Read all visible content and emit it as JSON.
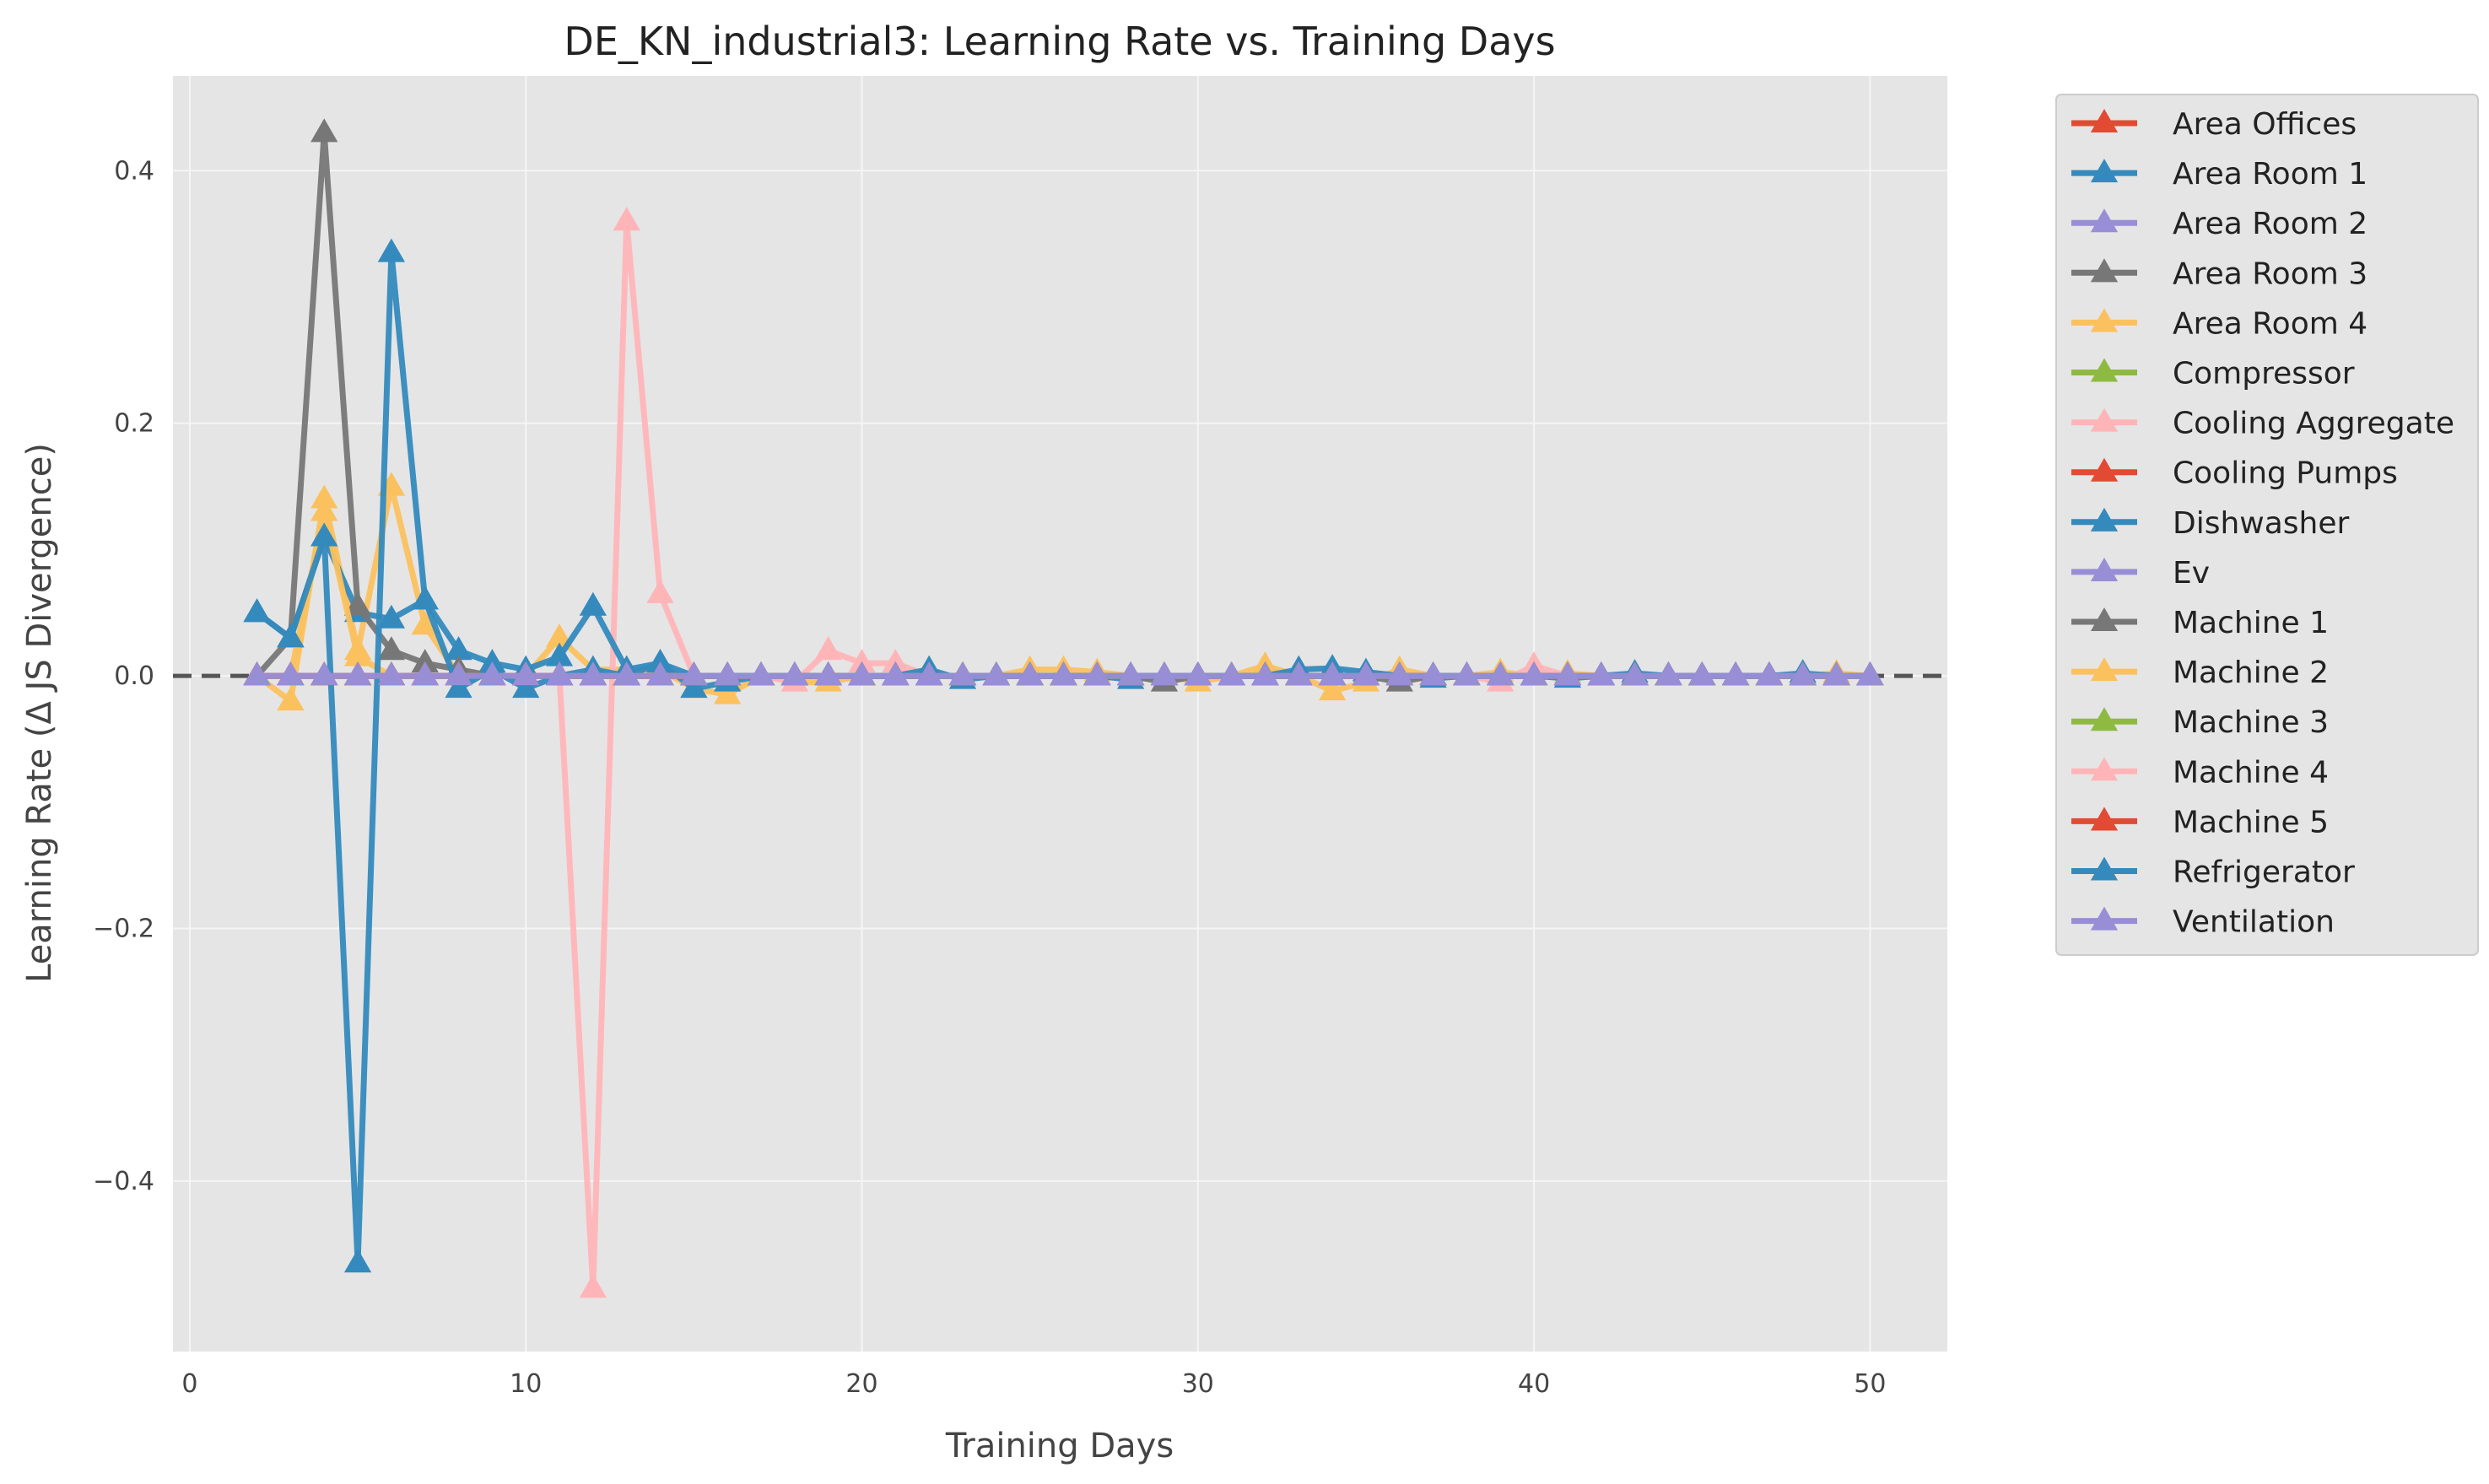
{
  "chart_data": {
    "type": "line",
    "title": "DE_KN_industrial3: Learning Rate vs. Training Days",
    "xlabel": "Training Days",
    "ylabel": "Learning Rate (Δ JS Divergence)",
    "xlim": [
      -0.5,
      52.3
    ],
    "ylim": [
      -0.535,
      0.475
    ],
    "xticks": [
      0,
      10,
      20,
      30,
      40,
      50
    ],
    "yticks": [
      -0.4,
      -0.2,
      0.0,
      0.2,
      0.4
    ],
    "ytick_labels": [
      "−0.4",
      "−0.2",
      "0.0",
      "0.2",
      "0.4"
    ],
    "x": [
      2,
      3,
      4,
      5,
      6,
      7,
      8,
      9,
      10,
      11,
      12,
      13,
      14,
      15,
      16,
      17,
      18,
      19,
      20,
      21,
      22,
      23,
      24,
      25,
      26,
      27,
      28,
      29,
      30,
      31,
      32,
      33,
      34,
      35,
      36,
      37,
      38,
      39,
      40,
      41,
      42,
      43,
      44,
      45,
      46,
      47,
      48,
      49,
      50
    ],
    "legend_position": "outside-right",
    "grid": true,
    "reference_line": {
      "y": 0,
      "style": "dashed",
      "color": "#555555"
    },
    "colors": {
      "background": "#e5e5e5",
      "grid": "#f5f5f5"
    },
    "series": [
      {
        "name": "Area Offices",
        "color": "#E24A33",
        "values": [
          0,
          0,
          0,
          0,
          0,
          0,
          0,
          0,
          0,
          0,
          0,
          0,
          0,
          0,
          0,
          0,
          0,
          0,
          0,
          0,
          0,
          0,
          0,
          0,
          0,
          0,
          0,
          0,
          0,
          0,
          0,
          0,
          0,
          0,
          0,
          0,
          0,
          0,
          0,
          0,
          0,
          0,
          0,
          0,
          0,
          0,
          0,
          0,
          0
        ]
      },
      {
        "name": "Area Room 1",
        "color": "#348ABD",
        "values": [
          0,
          0,
          0,
          0,
          0,
          0,
          0,
          0,
          0,
          0,
          0,
          0,
          0,
          0,
          0,
          0,
          0,
          0,
          0,
          0,
          0,
          0,
          0,
          0,
          0,
          0,
          0,
          0,
          0,
          0,
          0,
          0,
          0,
          0,
          0,
          0,
          0,
          0,
          0,
          0,
          0,
          0,
          0,
          0,
          0,
          0,
          0,
          0,
          0
        ]
      },
      {
        "name": "Area Room 2",
        "color": "#988ED5",
        "values": [
          0,
          0,
          0,
          0,
          0,
          0,
          0,
          0,
          0,
          0,
          0,
          0,
          0,
          0,
          0,
          0,
          0,
          0,
          0,
          0,
          0,
          0,
          0,
          0,
          0,
          0,
          0,
          0,
          0,
          0,
          0,
          0,
          0,
          0,
          0,
          0,
          0,
          0,
          0,
          0,
          0,
          0,
          0,
          0,
          0,
          0,
          0,
          0,
          0
        ]
      },
      {
        "name": "Area Room 3",
        "color": "#777777",
        "values": [
          0,
          0,
          0,
          0,
          0,
          0,
          0,
          0,
          0,
          0,
          0,
          0,
          0,
          0,
          0,
          0,
          0,
          0,
          0,
          0,
          0,
          0,
          0,
          0,
          0,
          0,
          0,
          0,
          0,
          0,
          0,
          0,
          0,
          0,
          0,
          0,
          0,
          0,
          0,
          0,
          0,
          0,
          0,
          0,
          0,
          0,
          0,
          0,
          0
        ]
      },
      {
        "name": "Area Room 4",
        "color": "#FBC15E",
        "values": [
          0,
          -0.02,
          0.14,
          0.02,
          0.15,
          0.04,
          0,
          0,
          0,
          0.03,
          0.005,
          0.005,
          0.005,
          -0.01,
          -0.015,
          0,
          -0.005,
          -0.005,
          0,
          0,
          0,
          0,
          0,
          0.005,
          0.005,
          0.003,
          0,
          0,
          -0.005,
          0,
          0.008,
          0,
          -0.012,
          -0.005,
          0.005,
          0,
          0,
          0.003,
          0,
          0.002,
          0,
          0,
          0,
          0,
          0,
          0,
          0,
          0.002,
          0
        ]
      },
      {
        "name": "Compressor",
        "color": "#8EBA42",
        "values": [
          0,
          0,
          0,
          0,
          0,
          0,
          0,
          0,
          0,
          0,
          0,
          0,
          0,
          0,
          0,
          0,
          0,
          0,
          0,
          0,
          0,
          0,
          0,
          0,
          0,
          0,
          0,
          0,
          0,
          0,
          0,
          0,
          0,
          0,
          0,
          0,
          0,
          0,
          0,
          0,
          0,
          0,
          0,
          0,
          0,
          0,
          0,
          0,
          0
        ]
      },
      {
        "name": "Cooling Aggregate",
        "color": "#FFB5B8",
        "values": [
          0,
          0,
          0,
          0,
          0,
          0,
          0,
          0,
          0,
          0,
          -0.485,
          0.36,
          0.065,
          0,
          0,
          0,
          -0.005,
          0.02,
          0.01,
          0.01,
          0,
          0,
          0,
          0,
          0,
          0,
          0,
          0,
          0,
          0,
          0,
          0,
          0,
          0,
          0,
          0,
          0,
          -0.005,
          0.008,
          0,
          0,
          0,
          0,
          0,
          0,
          0,
          0,
          0,
          0
        ]
      },
      {
        "name": "Cooling Pumps",
        "color": "#E24A33",
        "values": [
          0,
          0,
          0,
          0,
          0,
          0,
          0,
          0,
          0,
          0,
          0,
          0,
          0,
          0,
          0,
          0,
          0,
          0,
          0,
          0,
          0,
          0,
          0,
          0,
          0,
          0,
          0,
          0,
          0,
          0,
          0,
          0,
          0,
          0,
          0,
          0,
          0,
          0,
          0,
          0,
          0,
          0,
          0,
          0,
          0,
          0,
          0,
          0,
          0
        ]
      },
      {
        "name": "Dishwasher",
        "color": "#348ABD",
        "values": [
          0.05,
          0.03,
          0.11,
          0.05,
          0.045,
          0.06,
          0.02,
          0.01,
          0.005,
          0.015,
          0.055,
          0.005,
          0.01,
          -0.01,
          -0.005,
          0,
          0,
          0,
          0,
          0,
          0.005,
          -0.003,
          0,
          0,
          0,
          0,
          -0.003,
          0,
          0,
          0,
          0,
          0.005,
          0.006,
          0.003,
          0,
          -0.002,
          0,
          0,
          0,
          -0.002,
          0,
          0.002,
          0,
          0,
          0,
          0,
          0.002,
          0,
          0
        ]
      },
      {
        "name": "Ev",
        "color": "#988ED5",
        "values": [
          0,
          0,
          0,
          0,
          0,
          0,
          0,
          0,
          0,
          0,
          0,
          0,
          0,
          0,
          0,
          0,
          0,
          0,
          0,
          0,
          0,
          0,
          0,
          0,
          0,
          0,
          0,
          0,
          0,
          0,
          0,
          0,
          0,
          0,
          0,
          0,
          0,
          0,
          0,
          0,
          0,
          0,
          0,
          0,
          0,
          0,
          0,
          0,
          0
        ]
      },
      {
        "name": "Machine 1",
        "color": "#777777",
        "values": [
          0,
          0.03,
          0.43,
          0.055,
          0.02,
          0.01,
          0.005,
          0,
          0,
          0,
          0,
          0,
          0,
          0,
          0,
          0,
          0,
          0,
          0,
          0,
          0,
          0,
          0,
          0,
          0,
          0,
          0,
          -0.005,
          0,
          0,
          0,
          0,
          0,
          0,
          -0.005,
          0,
          0,
          0,
          0,
          0,
          0,
          0,
          0,
          0,
          0,
          0,
          0,
          0,
          0
        ]
      },
      {
        "name": "Machine 2",
        "color": "#FBC15E",
        "values": [
          0,
          0,
          0.13,
          0.015,
          0,
          0,
          0,
          0,
          0,
          0,
          0,
          0,
          0,
          0,
          0,
          0,
          0,
          0,
          0,
          0,
          0,
          0,
          0,
          0,
          0,
          0,
          0,
          0,
          0,
          0,
          0,
          0,
          0,
          0,
          0,
          0,
          0,
          0,
          0,
          0,
          0,
          0,
          0,
          0,
          0,
          0,
          0,
          0,
          0
        ]
      },
      {
        "name": "Machine 3",
        "color": "#8EBA42",
        "values": [
          0,
          0,
          0,
          0,
          0,
          0,
          0,
          0,
          0,
          0,
          0,
          0,
          0,
          0,
          0,
          0,
          0,
          0,
          0,
          0,
          0,
          0,
          0,
          0,
          0,
          0,
          0,
          0,
          0,
          0,
          0,
          0,
          0,
          0,
          0,
          0,
          0,
          0,
          0,
          0,
          0,
          0,
          0,
          0,
          0,
          0,
          0,
          0,
          0
        ]
      },
      {
        "name": "Machine 4",
        "color": "#FFB5B8",
        "values": [
          0,
          0,
          0,
          0,
          0,
          0,
          0,
          0,
          0,
          0,
          0,
          0,
          0,
          0,
          0,
          0,
          0,
          0,
          0,
          0,
          0,
          0,
          0,
          0,
          0,
          0,
          0,
          0,
          0,
          0,
          0,
          0,
          0,
          0,
          0,
          0,
          0,
          0,
          0,
          0,
          0,
          0,
          0,
          0,
          0,
          0,
          0,
          0,
          0
        ]
      },
      {
        "name": "Machine 5",
        "color": "#E24A33",
        "values": [
          0,
          0,
          0,
          0,
          0,
          0,
          0,
          0,
          0,
          0,
          0,
          0,
          0,
          0,
          0,
          0,
          0,
          0,
          0,
          0,
          0,
          0,
          0,
          0,
          0,
          0,
          0,
          0,
          0,
          0,
          0,
          0,
          0,
          0,
          0,
          0,
          0,
          0,
          0,
          0,
          0,
          0,
          0,
          0,
          0,
          0,
          0,
          0,
          0
        ]
      },
      {
        "name": "Refrigerator",
        "color": "#348ABD",
        "values": [
          0.05,
          0.03,
          0.11,
          -0.465,
          0.335,
          0.06,
          -0.01,
          0.005,
          -0.01,
          0,
          0.005,
          0,
          0.01,
          0,
          0,
          0,
          0,
          0,
          0,
          0,
          0,
          0,
          0,
          0,
          0,
          0,
          0,
          0,
          0,
          0,
          0,
          0,
          0,
          0,
          0,
          0,
          0,
          0,
          0,
          0,
          0,
          0,
          0,
          0,
          0,
          0,
          0,
          0,
          0
        ]
      },
      {
        "name": "Ventilation",
        "color": "#988ED5",
        "values": [
          0,
          0,
          0,
          0,
          0,
          0,
          0,
          0,
          0,
          0,
          0,
          0,
          0,
          0,
          0,
          0,
          0,
          0,
          0,
          0,
          0,
          0,
          0,
          0,
          0,
          0,
          0,
          0,
          0,
          0,
          0,
          0,
          0,
          0,
          0,
          0,
          0,
          0,
          0,
          0,
          0,
          0,
          0,
          0,
          0,
          0,
          0,
          0,
          0
        ]
      }
    ]
  }
}
